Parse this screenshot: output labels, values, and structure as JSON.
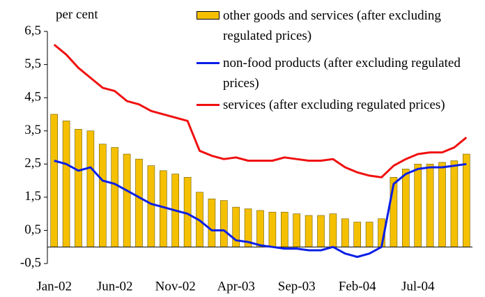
{
  "chart_data": {
    "type": "bar_line",
    "y_axis_label": "per cent",
    "categories": [
      "Jan-02",
      null,
      null,
      null,
      null,
      "Jun-02",
      null,
      null,
      null,
      null,
      "Nov-02",
      null,
      null,
      null,
      null,
      "Apr-03",
      null,
      null,
      null,
      null,
      "Sep-03",
      null,
      null,
      null,
      null,
      "Feb-04",
      null,
      null,
      null,
      null,
      "Jul-04",
      null,
      null,
      null,
      null
    ],
    "series": [
      {
        "name": "other goods and services (after excluding regulated prices)",
        "type": "bar",
        "color": "#f5c000",
        "values": [
          4.0,
          3.8,
          3.55,
          3.5,
          3.1,
          3.0,
          2.8,
          2.65,
          2.45,
          2.3,
          2.2,
          2.1,
          1.65,
          1.45,
          1.4,
          1.2,
          1.15,
          1.1,
          1.05,
          1.05,
          1.0,
          0.95,
          0.95,
          1.0,
          0.85,
          0.75,
          0.75,
          0.85,
          2.1,
          2.35,
          2.5,
          2.5,
          2.55,
          2.6,
          2.8
        ]
      },
      {
        "name": "non-food products (after excluding regulated prices)",
        "type": "line",
        "color": "#0a1ee6",
        "values": [
          2.6,
          2.5,
          2.3,
          2.4,
          2.0,
          1.9,
          1.7,
          1.5,
          1.3,
          1.2,
          1.1,
          1.0,
          0.8,
          0.5,
          0.5,
          0.2,
          0.15,
          0.05,
          0.0,
          -0.05,
          -0.05,
          -0.1,
          -0.1,
          0.0,
          -0.2,
          -0.3,
          -0.2,
          0.0,
          1.9,
          2.2,
          2.35,
          2.4,
          2.4,
          2.45,
          2.5
        ]
      },
      {
        "name": "services (after excluding regulated prices)",
        "type": "line",
        "color": "#f01010",
        "values": [
          6.1,
          5.8,
          5.4,
          5.1,
          4.8,
          4.7,
          4.4,
          4.3,
          4.1,
          4.0,
          3.9,
          3.8,
          2.9,
          2.75,
          2.65,
          2.7,
          2.6,
          2.6,
          2.6,
          2.7,
          2.65,
          2.6,
          2.6,
          2.65,
          2.4,
          2.25,
          2.15,
          2.1,
          2.45,
          2.65,
          2.8,
          2.85,
          2.85,
          3.0,
          3.3
        ]
      }
    ],
    "ylim": [
      -0.5,
      6.5
    ],
    "yticks": [
      {
        "value": -0.5,
        "label": "-0,5"
      },
      {
        "value": 0.5,
        "label": "0,5"
      },
      {
        "value": 1.5,
        "label": "1,5"
      },
      {
        "value": 2.5,
        "label": "2,5"
      },
      {
        "value": 3.5,
        "label": "3,5"
      },
      {
        "value": 4.5,
        "label": "4,5"
      },
      {
        "value": 5.5,
        "label": "5,5"
      },
      {
        "value": 6.5,
        "label": "6,5"
      }
    ],
    "grid": false
  }
}
